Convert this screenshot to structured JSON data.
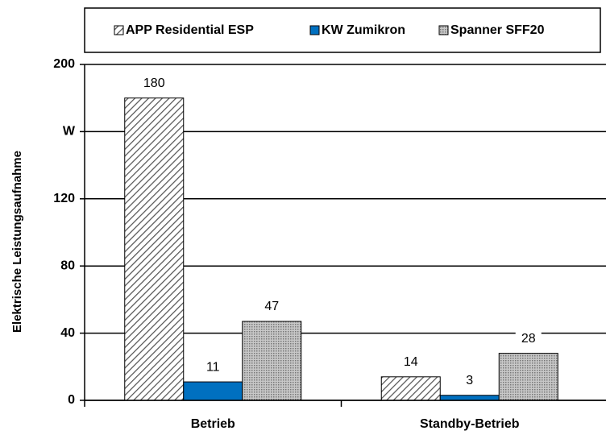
{
  "chart_data": {
    "type": "bar",
    "y_label": "Elektrische Leistungsaufnahme",
    "categories": [
      "Betrieb",
      "Standby-Betrieb"
    ],
    "series": [
      {
        "name": "APP Residential ESP",
        "color": "#555555",
        "pattern": "hatch",
        "values": [
          180,
          14
        ]
      },
      {
        "name": "KW Zumikron",
        "color": "#0070c0",
        "pattern": "solid",
        "values": [
          11,
          3
        ]
      },
      {
        "name": "Spanner SFF20",
        "color": "#888888",
        "pattern": "dots",
        "values": [
          47,
          28
        ]
      }
    ],
    "ylim": [
      0,
      200
    ],
    "yticks": [
      0,
      40,
      80,
      120,
      {
        "value": 160,
        "label": "W"
      },
      200
    ],
    "grid": true,
    "legend": "top"
  }
}
